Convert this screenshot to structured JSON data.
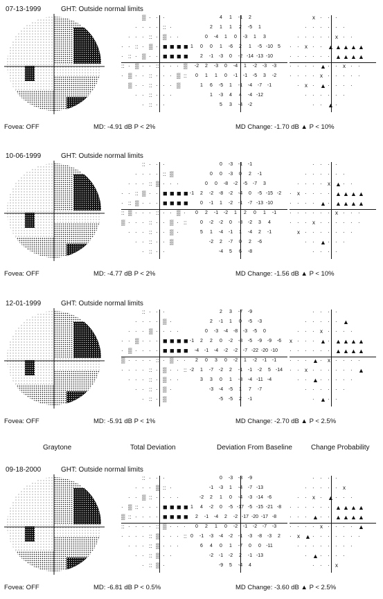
{
  "headers": {
    "graytone": "Graytone",
    "total_deviation": "Total Deviation",
    "deviation_from_baseline": "Deviation From Baseline",
    "change_probability": "Change Probability"
  },
  "exams": [
    {
      "date": "07-13-1999",
      "ght": "GHT: Outside normal limits",
      "fovea": "Fovea: OFF",
      "md": "MD:  -4.91 dB  P < 2%",
      "md_change": "MD Change:  -1.70 dB   ▲ P < 10%",
      "deviation_rows": [
        [
          "4",
          "1",
          "-1",
          "2"
        ],
        [
          "2",
          "1",
          "1",
          "2",
          "-5",
          "1"
        ],
        [
          "0",
          "-4",
          "1",
          "0",
          "-3",
          "1",
          "3"
        ],
        [
          "1",
          "0",
          "0",
          "1",
          "-6",
          "2",
          "1",
          "-5",
          "-10",
          "5"
        ],
        [
          "2",
          "-1",
          "-3",
          "0",
          "-2",
          "-14",
          "-13",
          "-10"
        ],
        [
          "-2",
          "2",
          "-3",
          "0",
          "-4",
          "1",
          "-2",
          "-3",
          "-3"
        ],
        [
          "0",
          "1",
          "1",
          "0",
          "-1",
          "-1",
          "-5",
          "3",
          "-2"
        ],
        [
          "1",
          "6",
          "-5",
          "1",
          "-1",
          "-4",
          "-7",
          "-1"
        ],
        [
          "1",
          "-3",
          "4",
          "4",
          "-4",
          "-12"
        ],
        [
          "5",
          "3",
          "-4",
          "-2"
        ]
      ]
    },
    {
      "date": "10-06-1999",
      "ght": "GHT: Outside normal limits",
      "fovea": "Fovea: OFF",
      "md": "MD:  -4.77 dB  P < 2%",
      "md_change": "MD Change:  -1.56 dB   ▲ P < 10%",
      "deviation_rows": [
        [
          "0",
          "-3",
          "-1",
          "-1"
        ],
        [
          "0",
          "0",
          "-3",
          "0",
          "2",
          "-1"
        ],
        [
          "0",
          "0",
          "-8",
          "-2",
          "-5",
          "-7",
          "3"
        ],
        [
          "-1",
          "2",
          "-2",
          "-8",
          "-2",
          "-4",
          "0",
          "-5",
          "-15",
          "-2"
        ],
        [
          "0",
          "-1",
          "1",
          "-2",
          "-1",
          "-7",
          "-13",
          "-10"
        ],
        [
          "0",
          "2",
          "-1",
          "-2",
          "1",
          "2",
          "0",
          "1",
          "-1"
        ],
        [
          "0",
          "-2",
          "-2",
          "0",
          "-3",
          "-2",
          "3",
          "4"
        ],
        [
          "5",
          "1",
          "-4",
          "-1",
          "1",
          "-4",
          "2",
          "-1"
        ],
        [
          "-2",
          "2",
          "-7",
          "0",
          "2",
          "-6"
        ],
        [
          "-4",
          "5",
          "6",
          "-8"
        ]
      ]
    },
    {
      "date": "12-01-1999",
      "ght": "GHT: Outside normal limits",
      "fovea": "Fovea: OFF",
      "md": "MD:  -5.91 dB  P < 1%",
      "md_change": "MD Change:  -2.70 dB   ▲ P < 2.5%",
      "deviation_rows": [
        [
          "2",
          "3",
          "-7",
          "-9"
        ],
        [
          "2",
          "-1",
          "1",
          "0",
          "-5",
          "-3"
        ],
        [
          "0",
          "-3",
          "-4",
          "-8",
          "-3",
          "-5",
          "0"
        ],
        [
          "-1",
          "2",
          "2",
          "0",
          "-2",
          "-8",
          "-5",
          "-9",
          "-9",
          "-6"
        ],
        [
          "-4",
          "-1",
          "-4",
          "-2",
          "-2",
          "-7",
          "-22",
          "-20",
          "-10"
        ],
        [
          "2",
          "0",
          "3",
          "0",
          "-2",
          "1",
          "-2",
          "-1",
          "-1"
        ],
        [
          "-2",
          "1",
          "-7",
          "-2",
          "2",
          "-1",
          "-1",
          "-2",
          "5",
          "-14"
        ],
        [
          "3",
          "3",
          "0",
          "1",
          "-3",
          "-4",
          "-11",
          "-4"
        ],
        [
          "-3",
          "-4",
          "-5",
          "1",
          "7",
          "-7"
        ],
        [
          "-5",
          "-5",
          "2",
          "-1"
        ]
      ]
    },
    {
      "date": "09-18-2000",
      "ght": "GHT: Outside normal limits",
      "fovea": "Fovea: OFF",
      "md": "MD:  -6.81 dB  P < 0.5%",
      "md_change": "MD Change:  -3.60 dB   ▲ P < 2.5%",
      "deviation_rows": [
        [
          "0",
          "-3",
          "-3",
          "-9"
        ],
        [
          "-1",
          "-3",
          "1",
          "-4",
          "-7",
          "-13"
        ],
        [
          "-2",
          "2",
          "1",
          "0",
          "-4",
          "-3",
          "-14",
          "-6"
        ],
        [
          "1",
          "4",
          "-2",
          "0",
          "-5",
          "-17",
          "-5",
          "-15",
          "-21",
          "-8"
        ],
        [
          "2",
          "-1",
          "-4",
          "2",
          "-2",
          "-17",
          "-20",
          "-17",
          "-8"
        ],
        [
          "0",
          "2",
          "1",
          "0",
          "-2",
          "-1",
          "-2",
          "-7",
          "-3"
        ],
        [
          "0",
          "-1",
          "-3",
          "-4",
          "-2",
          "-1",
          "-3",
          "-8",
          "-3",
          "2"
        ],
        [
          "6",
          "4",
          "0",
          "1",
          "-7",
          "0",
          "0",
          "-11"
        ],
        [
          "-2",
          "-1",
          "-2",
          "2",
          "-1",
          "-13"
        ],
        [
          "-9",
          "5",
          "-4",
          "4"
        ]
      ]
    }
  ]
}
